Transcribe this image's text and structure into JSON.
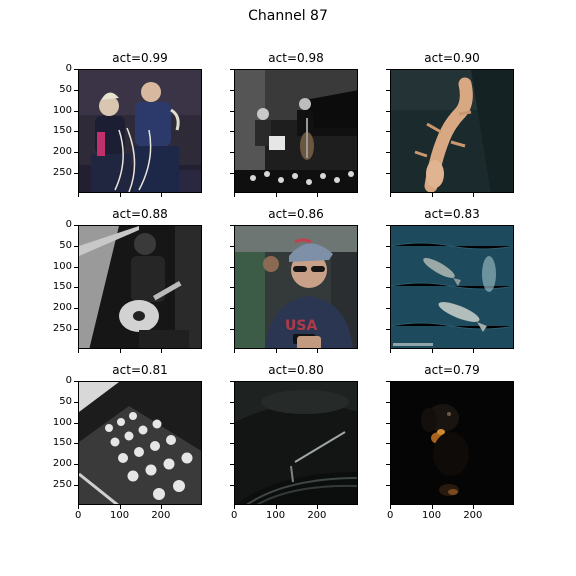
{
  "figure": {
    "title": "Channel 87"
  },
  "chart_data": {
    "type": "image-grid",
    "title": "Channel 87",
    "rows": 3,
    "cols": 3,
    "ytick_labels": [
      "0",
      "50",
      "100",
      "150",
      "200",
      "250"
    ],
    "xtick_labels": [
      "0",
      "100",
      "200"
    ],
    "panels": [
      {
        "title": "act=0.99",
        "activation": 0.99,
        "image": "two-men-with-ropes-icon"
      },
      {
        "title": "act=0.98",
        "activation": 0.98,
        "image": "piano-cello-concert-icon"
      },
      {
        "title": "act=0.90",
        "activation": 0.9,
        "image": "salamander-underwater-icon"
      },
      {
        "title": "act=0.88",
        "activation": 0.88,
        "image": "guitarist-monochrome-icon"
      },
      {
        "title": "act=0.86",
        "activation": 0.86,
        "image": "man-with-sunglasses-phone-icon"
      },
      {
        "title": "act=0.83",
        "activation": 0.83,
        "image": "whales-aerial-icon"
      },
      {
        "title": "act=0.81",
        "activation": 0.81,
        "image": "typewriter-keys-icon"
      },
      {
        "title": "act=0.80",
        "activation": 0.8,
        "image": "dark-machine-closeup-icon"
      },
      {
        "title": "act=0.79",
        "activation": 0.79,
        "image": "dog-in-dark-icon"
      }
    ]
  }
}
